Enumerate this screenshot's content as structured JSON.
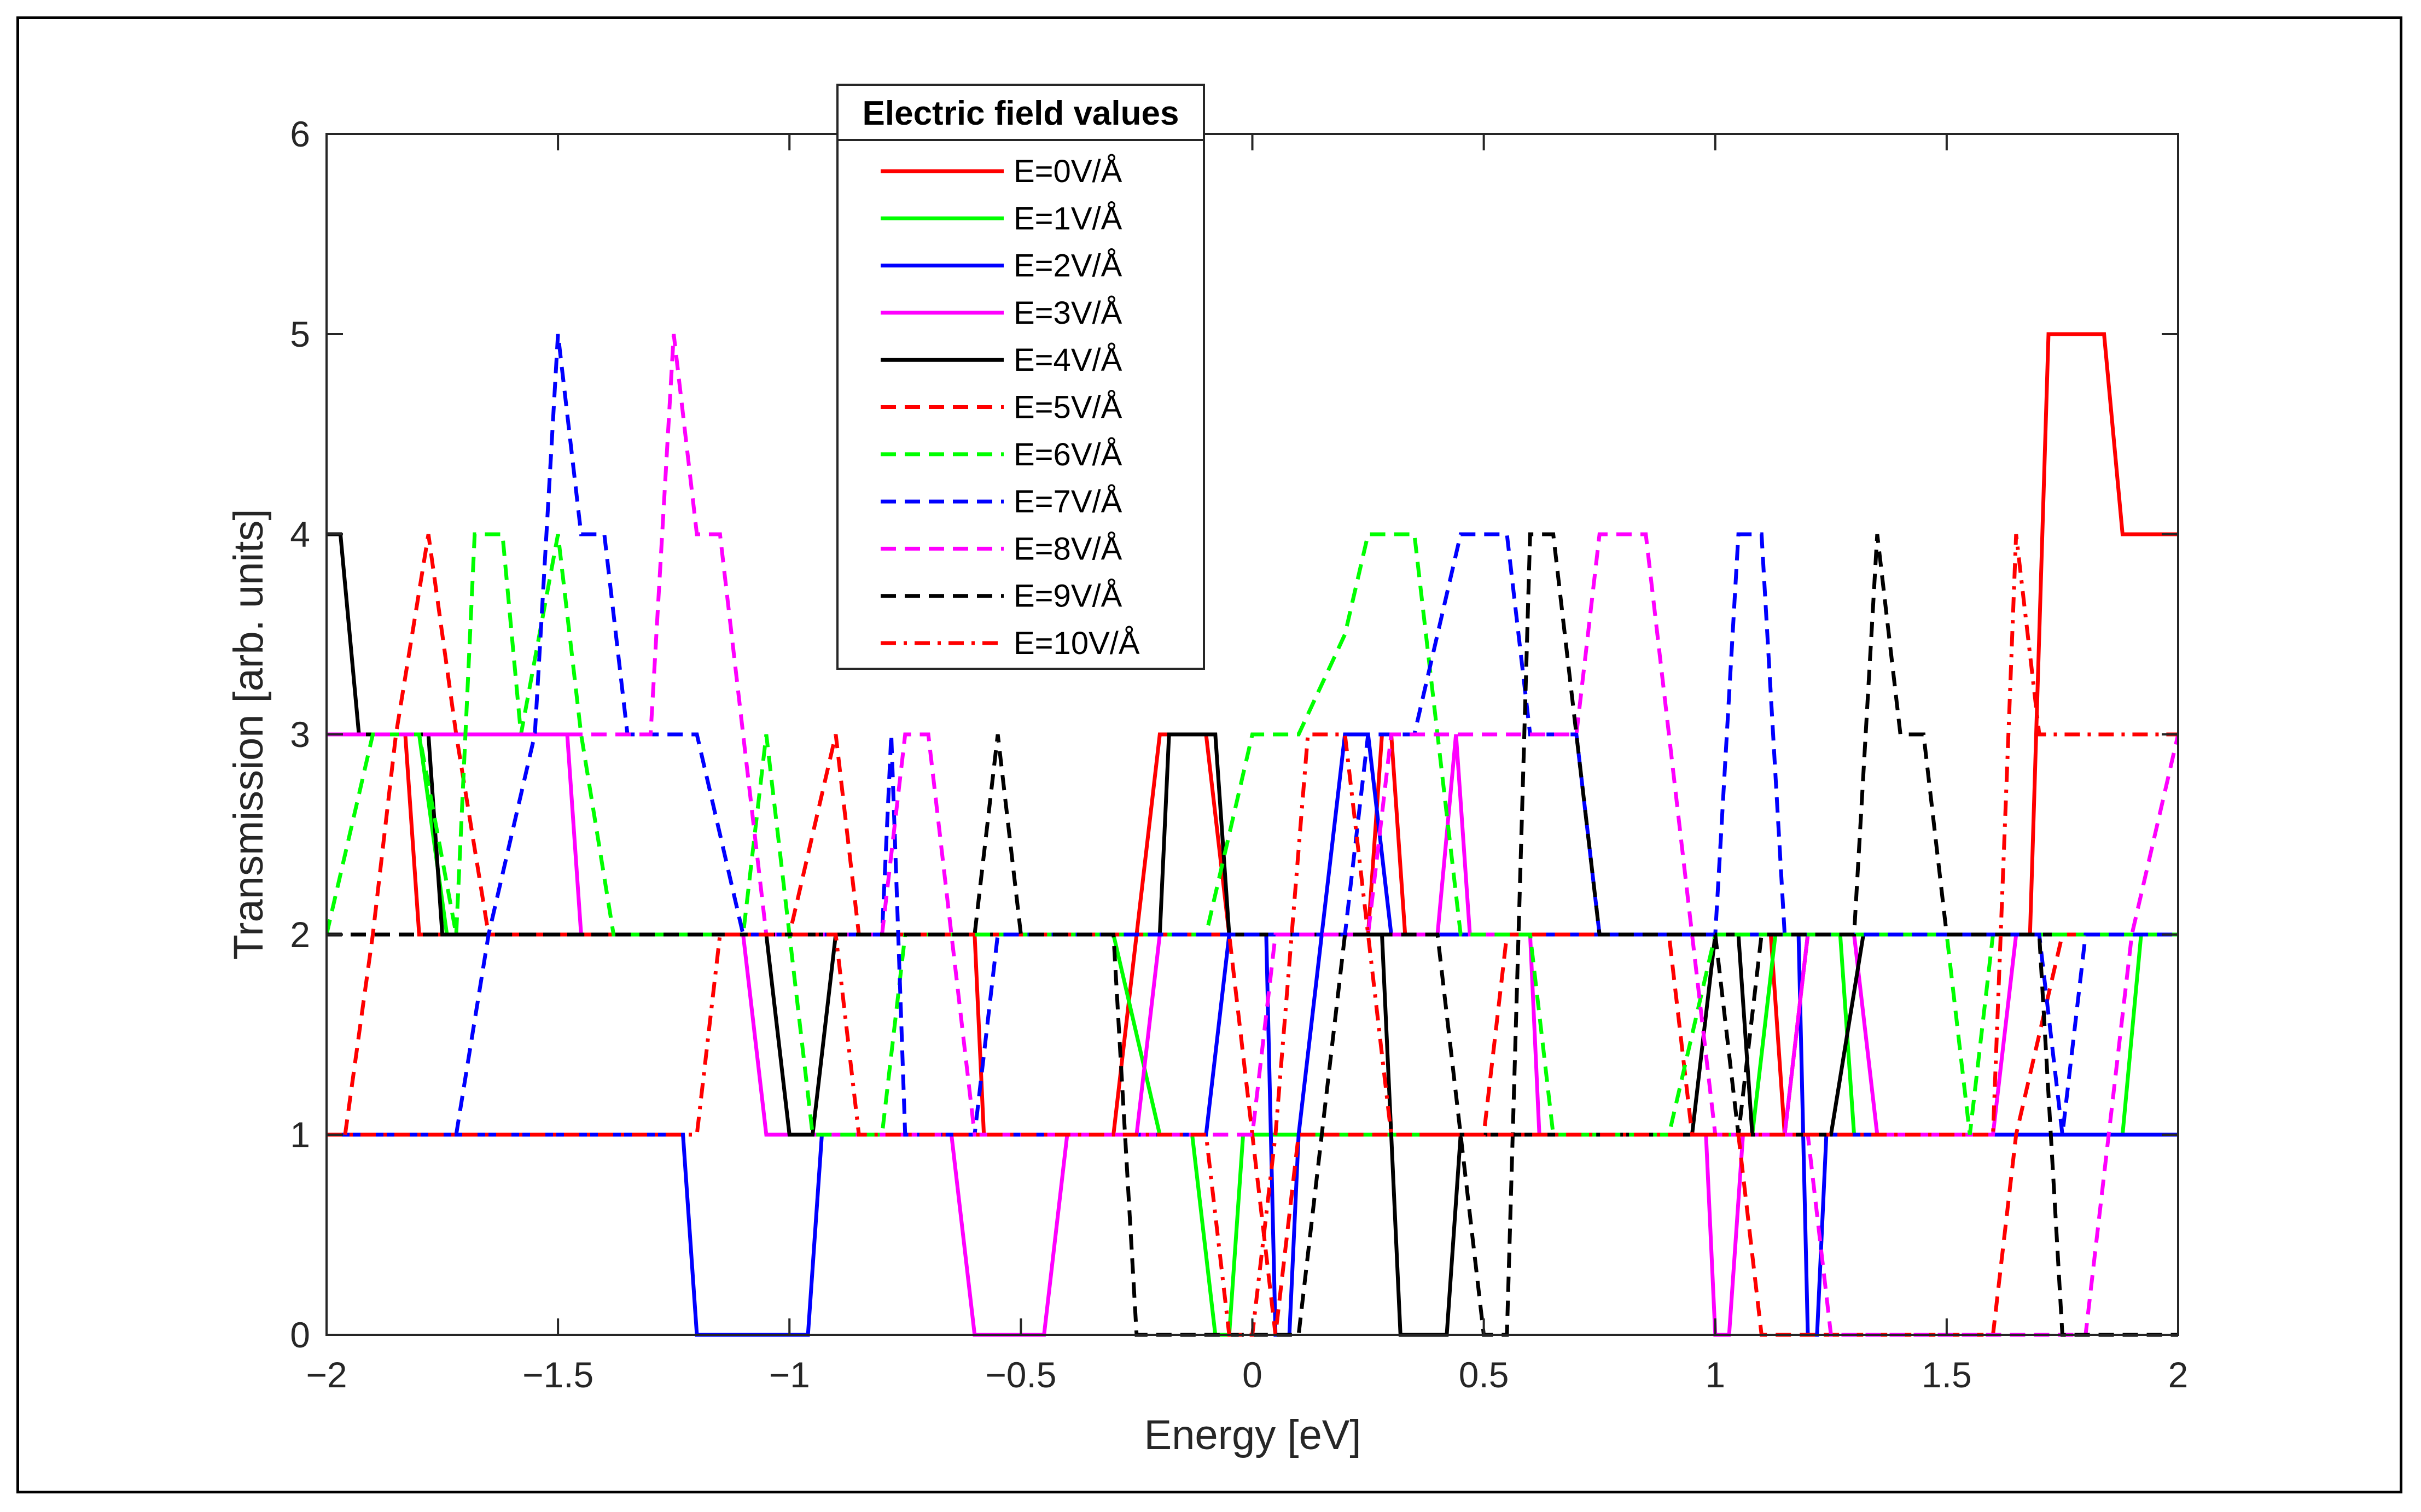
{
  "chart_data": {
    "type": "line",
    "title": "",
    "xlabel": "Energy [eV]",
    "ylabel": "Transmission [arb. units]",
    "xlim": [
      -2,
      2
    ],
    "ylim": [
      0,
      6
    ],
    "xticks": [
      -2,
      -1.5,
      -1,
      -0.5,
      0,
      0.5,
      1,
      1.5,
      2
    ],
    "xtick_labels": [
      "−2",
      "−1.5",
      "−1",
      "−0.5",
      "0",
      "0.5",
      "1",
      "1.5",
      "2"
    ],
    "yticks": [
      0,
      1,
      2,
      3,
      4,
      5,
      6
    ],
    "ytick_labels": [
      "0",
      "1",
      "2",
      "3",
      "4",
      "5",
      "6"
    ],
    "grid": false,
    "legend": {
      "title": "Electric field values",
      "placement": "top-center"
    },
    "series": [
      {
        "name": "E=0V/Å",
        "color": "#ff0000",
        "style": "solid",
        "points": [
          [
            -2,
            3
          ],
          [
            -1.83,
            3
          ],
          [
            -1.8,
            2
          ],
          [
            -0.6,
            2
          ],
          [
            -0.58,
            1
          ],
          [
            -0.3,
            1
          ],
          [
            -0.25,
            2
          ],
          [
            -0.2,
            3
          ],
          [
            -0.1,
            3
          ],
          [
            -0.05,
            2
          ],
          [
            0.25,
            2
          ],
          [
            0.28,
            3
          ],
          [
            0.3,
            3
          ],
          [
            0.33,
            2
          ],
          [
            1.12,
            2
          ],
          [
            1.15,
            1
          ],
          [
            1.2,
            2
          ],
          [
            1.68,
            2
          ],
          [
            1.72,
            5
          ],
          [
            1.84,
            5
          ],
          [
            1.88,
            4
          ],
          [
            2,
            4
          ]
        ]
      },
      {
        "name": "E=1V/Å",
        "color": "#00ff00",
        "style": "solid",
        "points": [
          [
            -2,
            3
          ],
          [
            -1.8,
            3
          ],
          [
            -1.74,
            2
          ],
          [
            -0.3,
            2
          ],
          [
            -0.2,
            1
          ],
          [
            -0.13,
            1
          ],
          [
            -0.08,
            0
          ],
          [
            -0.05,
            0
          ],
          [
            -0.02,
            1
          ],
          [
            1.08,
            1
          ],
          [
            1.13,
            2
          ],
          [
            1.27,
            2
          ],
          [
            1.3,
            1
          ],
          [
            1.88,
            1
          ],
          [
            1.92,
            2
          ],
          [
            2,
            2
          ]
        ]
      },
      {
        "name": "E=2V/Å",
        "color": "#0000ff",
        "style": "solid",
        "points": [
          [
            -2,
            1
          ],
          [
            -1.23,
            1
          ],
          [
            -1.2,
            0
          ],
          [
            -0.96,
            0
          ],
          [
            -0.93,
            1
          ],
          [
            -0.1,
            1
          ],
          [
            -0.05,
            2
          ],
          [
            0.03,
            2
          ],
          [
            0.05,
            0
          ],
          [
            0.08,
            0
          ],
          [
            0.1,
            1
          ],
          [
            0.15,
            2
          ],
          [
            0.2,
            3
          ],
          [
            0.25,
            3
          ],
          [
            0.3,
            2
          ],
          [
            1.18,
            2
          ],
          [
            1.2,
            0
          ],
          [
            1.22,
            0
          ],
          [
            1.24,
            1
          ],
          [
            2,
            1
          ]
        ]
      },
      {
        "name": "E=3V/Å",
        "color": "#ff00ff",
        "style": "solid",
        "points": [
          [
            -2,
            3
          ],
          [
            -1.48,
            3
          ],
          [
            -1.45,
            2
          ],
          [
            -1.1,
            2
          ],
          [
            -1.05,
            1
          ],
          [
            -0.65,
            1
          ],
          [
            -0.6,
            0
          ],
          [
            -0.45,
            0
          ],
          [
            -0.4,
            1
          ],
          [
            -0.25,
            1
          ],
          [
            -0.2,
            2
          ],
          [
            0.4,
            2
          ],
          [
            0.44,
            3
          ],
          [
            0.47,
            2
          ],
          [
            0.6,
            2
          ],
          [
            0.62,
            1
          ],
          [
            0.98,
            1
          ],
          [
            1,
            0
          ],
          [
            1.03,
            0
          ],
          [
            1.06,
            1
          ],
          [
            1.15,
            1
          ],
          [
            1.2,
            2
          ],
          [
            1.3,
            2
          ],
          [
            1.35,
            1
          ],
          [
            1.6,
            1
          ],
          [
            1.65,
            2
          ],
          [
            2,
            2
          ]
        ]
      },
      {
        "name": "E=4V/Å",
        "color": "#000000",
        "style": "solid",
        "points": [
          [
            -2,
            4
          ],
          [
            -1.97,
            4
          ],
          [
            -1.93,
            3
          ],
          [
            -1.78,
            3
          ],
          [
            -1.75,
            2
          ],
          [
            -1.05,
            2
          ],
          [
            -1,
            1
          ],
          [
            -0.95,
            1
          ],
          [
            -0.9,
            2
          ],
          [
            -0.2,
            2
          ],
          [
            -0.18,
            3
          ],
          [
            -0.08,
            3
          ],
          [
            -0.05,
            2
          ],
          [
            0.28,
            2
          ],
          [
            0.3,
            1
          ],
          [
            0.32,
            0
          ],
          [
            0.42,
            0
          ],
          [
            0.45,
            1
          ],
          [
            0.95,
            1
          ],
          [
            1.0,
            2
          ],
          [
            1.05,
            2
          ],
          [
            1.08,
            1
          ],
          [
            1.25,
            1
          ],
          [
            1.32,
            2
          ],
          [
            2,
            2
          ]
        ]
      },
      {
        "name": "E=5V/Å",
        "color": "#ff0000",
        "style": "dashed",
        "points": [
          [
            -1.96,
            1
          ],
          [
            -1.9,
            2
          ],
          [
            -1.85,
            3
          ],
          [
            -1.78,
            4
          ],
          [
            -1.72,
            3
          ],
          [
            -1.65,
            2
          ],
          [
            -1.0,
            2
          ],
          [
            -0.95,
            2.5
          ],
          [
            -0.9,
            3
          ],
          [
            -0.85,
            2
          ],
          [
            -0.05,
            2
          ],
          [
            0,
            1
          ],
          [
            0.05,
            0
          ],
          [
            0.1,
            1
          ],
          [
            0.5,
            1
          ],
          [
            0.55,
            2
          ],
          [
            0.9,
            2
          ],
          [
            0.95,
            1
          ],
          [
            1.05,
            1
          ],
          [
            1.1,
            0
          ],
          [
            1.6,
            0
          ],
          [
            1.65,
            1
          ],
          [
            1.75,
            2
          ],
          [
            2,
            2
          ]
        ]
      },
      {
        "name": "E=6V/Å",
        "color": "#00ff00",
        "style": "dashed",
        "points": [
          [
            -2,
            2
          ],
          [
            -1.9,
            3
          ],
          [
            -1.8,
            3
          ],
          [
            -1.72,
            2
          ],
          [
            -1.68,
            4
          ],
          [
            -1.62,
            4
          ],
          [
            -1.58,
            3
          ],
          [
            -1.5,
            4
          ],
          [
            -1.45,
            3
          ],
          [
            -1.38,
            2
          ],
          [
            -1.1,
            2
          ],
          [
            -1.05,
            3
          ],
          [
            -1.0,
            2
          ],
          [
            -0.95,
            1
          ],
          [
            -0.8,
            1
          ],
          [
            -0.75,
            2
          ],
          [
            -0.1,
            2
          ],
          [
            0,
            3
          ],
          [
            0.1,
            3
          ],
          [
            0.2,
            3.5
          ],
          [
            0.25,
            4
          ],
          [
            0.35,
            4
          ],
          [
            0.4,
            3
          ],
          [
            0.45,
            2
          ],
          [
            0.6,
            2
          ],
          [
            0.65,
            1
          ],
          [
            0.9,
            1
          ],
          [
            1.0,
            2
          ],
          [
            1.5,
            2
          ],
          [
            1.55,
            1
          ],
          [
            1.6,
            2
          ],
          [
            2,
            2
          ]
        ]
      },
      {
        "name": "E=7V/Å",
        "color": "#0000ff",
        "style": "dashed",
        "points": [
          [
            -1.72,
            1
          ],
          [
            -1.65,
            2
          ],
          [
            -1.55,
            3
          ],
          [
            -1.5,
            5
          ],
          [
            -1.45,
            4
          ],
          [
            -1.4,
            4
          ],
          [
            -1.35,
            3
          ],
          [
            -1.2,
            3
          ],
          [
            -1.1,
            2
          ],
          [
            -0.8,
            2
          ],
          [
            -0.78,
            3
          ],
          [
            -0.75,
            1
          ],
          [
            -0.7,
            1
          ],
          [
            -0.6,
            1
          ],
          [
            -0.55,
            2
          ],
          [
            0.2,
            2
          ],
          [
            0.25,
            3
          ],
          [
            0.35,
            3
          ],
          [
            0.45,
            4
          ],
          [
            0.55,
            4
          ],
          [
            0.6,
            3
          ],
          [
            0.7,
            3
          ],
          [
            0.75,
            2
          ],
          [
            1.0,
            2
          ],
          [
            1.05,
            4
          ],
          [
            1.1,
            4
          ],
          [
            1.15,
            2
          ],
          [
            1.7,
            2
          ],
          [
            1.75,
            1
          ],
          [
            1.8,
            2
          ],
          [
            2,
            2
          ]
        ]
      },
      {
        "name": "E=8V/Å",
        "color": "#ff00ff",
        "style": "dashed",
        "points": [
          [
            -2,
            3
          ],
          [
            -1.3,
            3
          ],
          [
            -1.25,
            5
          ],
          [
            -1.2,
            4
          ],
          [
            -1.15,
            4
          ],
          [
            -1.1,
            3
          ],
          [
            -1.05,
            2
          ],
          [
            -0.8,
            2
          ],
          [
            -0.75,
            3
          ],
          [
            -0.7,
            3
          ],
          [
            -0.65,
            2
          ],
          [
            -0.6,
            1
          ],
          [
            0,
            1
          ],
          [
            0.05,
            2
          ],
          [
            0.25,
            2
          ],
          [
            0.3,
            3
          ],
          [
            0.7,
            3
          ],
          [
            0.75,
            4
          ],
          [
            0.85,
            4
          ],
          [
            0.9,
            3
          ],
          [
            0.95,
            2
          ],
          [
            1.0,
            1
          ],
          [
            1.2,
            1
          ],
          [
            1.25,
            0
          ],
          [
            1.8,
            0
          ],
          [
            1.85,
            1
          ],
          [
            1.9,
            2
          ],
          [
            2,
            3
          ]
        ]
      },
      {
        "name": "E=9V/Å",
        "color": "#000000",
        "style": "dashed",
        "points": [
          [
            -2,
            2
          ],
          [
            -0.6,
            2
          ],
          [
            -0.55,
            3
          ],
          [
            -0.5,
            2
          ],
          [
            -0.3,
            2
          ],
          [
            -0.25,
            0
          ],
          [
            0.1,
            0
          ],
          [
            0.15,
            1
          ],
          [
            0.2,
            2
          ],
          [
            0.4,
            2
          ],
          [
            0.45,
            1
          ],
          [
            0.5,
            0
          ],
          [
            0.55,
            0
          ],
          [
            0.6,
            4
          ],
          [
            0.65,
            4
          ],
          [
            0.7,
            3
          ],
          [
            0.75,
            2
          ],
          [
            1.0,
            2
          ],
          [
            1.05,
            1
          ],
          [
            1.1,
            2
          ],
          [
            1.3,
            2
          ],
          [
            1.35,
            4
          ],
          [
            1.4,
            3
          ],
          [
            1.45,
            3
          ],
          [
            1.5,
            2
          ],
          [
            1.7,
            2
          ],
          [
            1.75,
            0
          ],
          [
            2,
            0
          ]
        ]
      },
      {
        "name": "E=10V/Å",
        "color": "#ff0000",
        "style": "dashdot",
        "points": [
          [
            -2,
            1
          ],
          [
            -1.2,
            1
          ],
          [
            -1.15,
            2
          ],
          [
            -0.9,
            2
          ],
          [
            -0.85,
            1
          ],
          [
            -0.1,
            1
          ],
          [
            -0.05,
            0
          ],
          [
            0,
            0
          ],
          [
            0.05,
            1
          ],
          [
            0.12,
            3
          ],
          [
            0.2,
            3
          ],
          [
            0.25,
            2
          ],
          [
            0.3,
            1
          ],
          [
            1.6,
            1
          ],
          [
            1.65,
            4
          ],
          [
            1.7,
            3
          ],
          [
            2,
            3
          ]
        ]
      }
    ]
  }
}
